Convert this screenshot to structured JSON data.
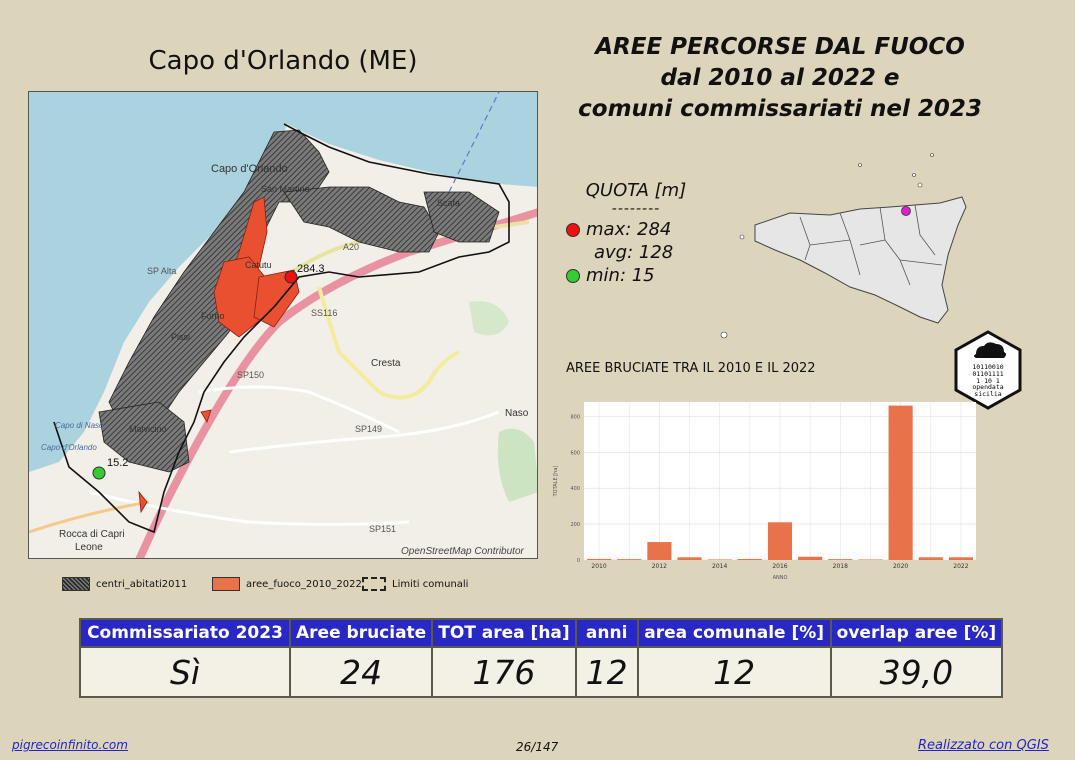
{
  "municipality": {
    "title": "Capo d'Orlando (ME)"
  },
  "main_title": {
    "line1": "AREE PERCORSE DAL FUOCO",
    "line2": "dal 2010 al 2022 e",
    "line3": "comuni commissariati nel 2023"
  },
  "map": {
    "labels": {
      "capo_dorlando": "Capo d'Orlando",
      "san_martino": "San Martino",
      "scafa": "Scafa",
      "catutu": "Catutu",
      "forno": "Forno",
      "pissi": "Pissi",
      "cresta": "Cresta",
      "naso": "Naso",
      "malvicino": "Malvicino",
      "rocca_di_capri_leone": "Rocca di Capri",
      "leone": "Leone",
      "capo_di_naso": "Capo di Naso",
      "capo_capo": "Capo d'Orlando",
      "sp_alta": "SP Alta",
      "a20": "A20",
      "ss116": "SS116",
      "sp150": "SP150",
      "sp149": "SP149",
      "sp151": "SP151",
      "max_point": "284.3",
      "min_point": "15.2",
      "attribution": "OpenStreetMap Contributor"
    },
    "colors": {
      "sea": "#aad3df",
      "land": "#f2efe9",
      "burned": "#e8502f",
      "urban": "#555555",
      "highway": "#e892a2"
    }
  },
  "quota": {
    "title": "QUOTA [m]",
    "separator": "--------",
    "max_label": "max: 284",
    "avg_label": "avg: 128",
    "min_label": "min: 15",
    "max_color": "#ee1111",
    "min_color": "#33cc33"
  },
  "badge": {
    "line1": "10110010",
    "line2": "01101111",
    "line3": "1  10 1",
    "line4": "opendata",
    "line5": "sicilia"
  },
  "histogram": {
    "title": "AREE BRUCIATE TRA IL 2010 E IL 2022"
  },
  "chart_data": {
    "type": "bar",
    "title": "AREE BRUCIATE TRA IL 2010 E IL 2022",
    "xlabel": "ANNO",
    "ylabel": "TOTALE [ha]",
    "categories": [
      "2010",
      "2011",
      "2012",
      "2013",
      "2014",
      "2015",
      "2016",
      "2017",
      "2018",
      "2019",
      "2020",
      "2021",
      "2022"
    ],
    "values": [
      6,
      5,
      100,
      15,
      3,
      6,
      210,
      18,
      5,
      3,
      860,
      15,
      15
    ],
    "ylim": [
      0,
      880
    ],
    "yticks": [
      0,
      200,
      400,
      600,
      800
    ],
    "xticks": [
      "2010",
      "2012",
      "2014",
      "2016",
      "2018",
      "2020",
      "2022"
    ],
    "bar_color": "#e8734a",
    "grid": true
  },
  "legend": {
    "urban": "centri_abitati2011",
    "fire": "aree_fuoco_2010_2022",
    "limits": "Limiti comunali"
  },
  "summary": {
    "headers": [
      "Commissariato 2023",
      "Aree bruciate",
      "TOT area [ha]",
      "anni",
      "area comunale [%]",
      "overlap aree [%]"
    ],
    "values": [
      "Sì",
      "24",
      "176",
      "12",
      "12",
      "39,0"
    ]
  },
  "footer": {
    "left": "pigrecoinfinito.com",
    "page": "26/147",
    "right": "Realizzato con QGIS"
  }
}
